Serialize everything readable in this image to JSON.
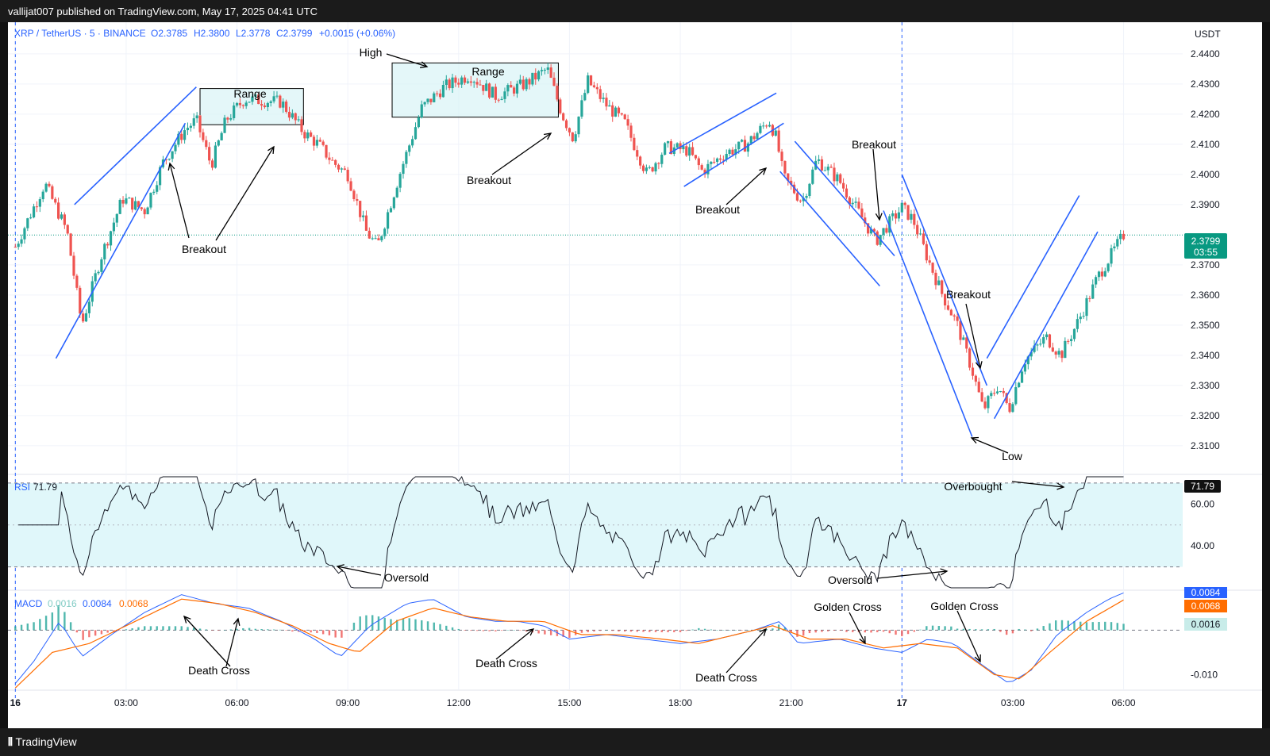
{
  "header": {
    "publisher_text": "vallijat007 published on TradingView.com, May 17, 2025 04:41 UTC"
  },
  "footer": {
    "brand": "TradingView"
  },
  "chart_data": {
    "type": "candlestick",
    "symbol_line": "XRP / TetherUS · 5 · BINANCE",
    "ohlc": {
      "open": "O2.3785",
      "high": "H2.3800",
      "low": "L2.3778",
      "close": "C2.3799",
      "change": "+0.0015 (+0.06%)"
    },
    "currency": "USDT",
    "last_price": "2.3799",
    "countdown": "03:55",
    "price_ticks": [
      "2.4400",
      "2.4300",
      "2.4200",
      "2.4100",
      "2.4000",
      "2.3900",
      "2.3700",
      "2.3600",
      "2.3500",
      "2.3400",
      "2.3300",
      "2.3200",
      "2.3100"
    ],
    "price_range": [
      2.3005,
      2.4505
    ],
    "time_ticks": [
      "16",
      "03:00",
      "06:00",
      "09:00",
      "12:00",
      "15:00",
      "18:00",
      "21:00",
      "17",
      "03:00",
      "06:00"
    ],
    "time_range_hours": [
      -0.2,
      31.6
    ],
    "price_path": [
      [
        0,
        2.376
      ],
      [
        0.8,
        2.397
      ],
      [
        1.4,
        2.381
      ],
      [
        1.8,
        2.35
      ],
      [
        2.3,
        2.372
      ],
      [
        2.9,
        2.392
      ],
      [
        3.5,
        2.388
      ],
      [
        4.0,
        2.404
      ],
      [
        4.6,
        2.415
      ],
      [
        4.9,
        2.418
      ],
      [
        5.3,
        2.403
      ],
      [
        5.7,
        2.418
      ],
      [
        6.2,
        2.425
      ],
      [
        7.2,
        2.424
      ],
      [
        7.8,
        2.414
      ],
      [
        8.2,
        2.41
      ],
      [
        8.6,
        2.404
      ],
      [
        9.0,
        2.4
      ],
      [
        9.5,
        2.381
      ],
      [
        9.8,
        2.376
      ],
      [
        10.4,
        2.4
      ],
      [
        11.0,
        2.422
      ],
      [
        11.6,
        2.429
      ],
      [
        12.3,
        2.433
      ],
      [
        13.0,
        2.426
      ],
      [
        13.8,
        2.43
      ],
      [
        14.4,
        2.435
      ],
      [
        14.8,
        2.42
      ],
      [
        15.1,
        2.412
      ],
      [
        15.5,
        2.431
      ],
      [
        16.0,
        2.423
      ],
      [
        16.5,
        2.417
      ],
      [
        17.1,
        2.4
      ],
      [
        17.6,
        2.409
      ],
      [
        18.2,
        2.408
      ],
      [
        18.6,
        2.401
      ],
      [
        19.2,
        2.407
      ],
      [
        19.8,
        2.41
      ],
      [
        20.4,
        2.418
      ],
      [
        20.6,
        2.412
      ],
      [
        20.8,
        2.399
      ],
      [
        21.3,
        2.391
      ],
      [
        21.7,
        2.405
      ],
      [
        22.3,
        2.398
      ],
      [
        22.8,
        2.388
      ],
      [
        23.3,
        2.378
      ],
      [
        23.6,
        2.383
      ],
      [
        24.0,
        2.389
      ],
      [
        24.3,
        2.385
      ],
      [
        24.7,
        2.372
      ],
      [
        25.1,
        2.36
      ],
      [
        25.5,
        2.35
      ],
      [
        25.9,
        2.335
      ],
      [
        26.2,
        2.322
      ],
      [
        26.6,
        2.33
      ],
      [
        26.9,
        2.322
      ],
      [
        27.3,
        2.338
      ],
      [
        27.9,
        2.346
      ],
      [
        28.3,
        2.34
      ],
      [
        28.8,
        2.352
      ],
      [
        29.3,
        2.366
      ],
      [
        29.9,
        2.378
      ],
      [
        30.0,
        2.3799
      ]
    ],
    "rsi": {
      "label": "RSI",
      "value": "71.79",
      "ticks": [
        "60.00",
        "40.00"
      ],
      "overbought_level": 70,
      "oversold_level": 30,
      "range": [
        20,
        73
      ]
    },
    "macd": {
      "label": "MACD",
      "values": [
        "0.0016",
        "0.0084",
        "0.0068"
      ],
      "ticks": [
        "0.0084",
        "0.0068",
        "0.0016",
        "-0.010"
      ],
      "range": [
        -0.0135,
        0.009
      ],
      "macd_line_path": [
        [
          0,
          -0.012
        ],
        [
          0.5,
          -0.007
        ],
        [
          1.2,
          0.002
        ],
        [
          1.8,
          -0.006
        ],
        [
          2.6,
          -0.001
        ],
        [
          3.5,
          0.004
        ],
        [
          4.5,
          0.008
        ],
        [
          5.4,
          0.006
        ],
        [
          6.3,
          0.005
        ],
        [
          7.2,
          0.002
        ],
        [
          8.1,
          -0.002
        ],
        [
          8.8,
          -0.006
        ],
        [
          9.6,
          0.001
        ],
        [
          10.6,
          0.006
        ],
        [
          11.3,
          0.007
        ],
        [
          12.2,
          0.003
        ],
        [
          13.0,
          0.002
        ],
        [
          13.6,
          0.002
        ],
        [
          14.3,
          0.001
        ],
        [
          15.0,
          -0.002
        ],
        [
          16.0,
          -0.001
        ],
        [
          17.0,
          -0.002
        ],
        [
          18.0,
          -0.003
        ],
        [
          19.0,
          -0.002
        ],
        [
          20.0,
          0.0
        ],
        [
          20.7,
          0.002
        ],
        [
          21.2,
          -0.003
        ],
        [
          22.3,
          -0.002
        ],
        [
          23.2,
          -0.004
        ],
        [
          24.0,
          -0.005
        ],
        [
          24.7,
          -0.002
        ],
        [
          25.4,
          -0.003
        ],
        [
          26.2,
          -0.008
        ],
        [
          26.9,
          -0.012
        ],
        [
          27.5,
          -0.009
        ],
        [
          28.2,
          -0.001
        ],
        [
          29.0,
          0.004
        ],
        [
          29.6,
          0.007
        ],
        [
          30.0,
          0.0084
        ]
      ],
      "signal_line_path": [
        [
          0,
          -0.013
        ],
        [
          1.0,
          -0.005
        ],
        [
          2.0,
          -0.003
        ],
        [
          3.0,
          0.001
        ],
        [
          4.5,
          0.007
        ],
        [
          5.5,
          0.006
        ],
        [
          6.5,
          0.004
        ],
        [
          7.5,
          0.001
        ],
        [
          8.5,
          -0.003
        ],
        [
          9.3,
          -0.005
        ],
        [
          10.3,
          0.002
        ],
        [
          11.3,
          0.005
        ],
        [
          12.3,
          0.003
        ],
        [
          13.3,
          0.002
        ],
        [
          14.3,
          0.002
        ],
        [
          15.3,
          -0.001
        ],
        [
          16.3,
          -0.001
        ],
        [
          17.5,
          -0.002
        ],
        [
          18.5,
          -0.003
        ],
        [
          19.5,
          -0.001
        ],
        [
          20.5,
          0.001
        ],
        [
          21.5,
          -0.002
        ],
        [
          22.5,
          -0.002
        ],
        [
          23.5,
          -0.004
        ],
        [
          24.5,
          -0.003
        ],
        [
          25.5,
          -0.004
        ],
        [
          26.5,
          -0.01
        ],
        [
          27.2,
          -0.011
        ],
        [
          28.0,
          -0.005
        ],
        [
          29.0,
          0.002
        ],
        [
          30.0,
          0.0068
        ]
      ]
    },
    "annotations": {
      "range_1": "Range",
      "range_2": "Range",
      "high": "High",
      "low": "Low",
      "breakout_1": "Breakout",
      "breakout_2": "Breakout",
      "breakout_3": "Breakout",
      "breakout_4": "Breakout",
      "breakout_5": "Breakout",
      "overbought": "Overbought",
      "oversold_1": "Oversold",
      "oversold_2": "Oversold",
      "death_cross_1": "Death Cross",
      "death_cross_2": "Death Cross",
      "death_cross_3": "Death Cross",
      "golden_cross_1": "Golden Cross",
      "golden_cross_2": "Golden Cross"
    },
    "colors": {
      "up": "#26a69a",
      "down": "#ef5350",
      "trend": "#2962ff",
      "macd": "#2962ff",
      "signal": "#ff6d00",
      "rsi_band": "#e0f7fa",
      "range_box": "#d8f3f7",
      "last_price_bg": "#089981",
      "axis_text": "#2962ff"
    }
  }
}
